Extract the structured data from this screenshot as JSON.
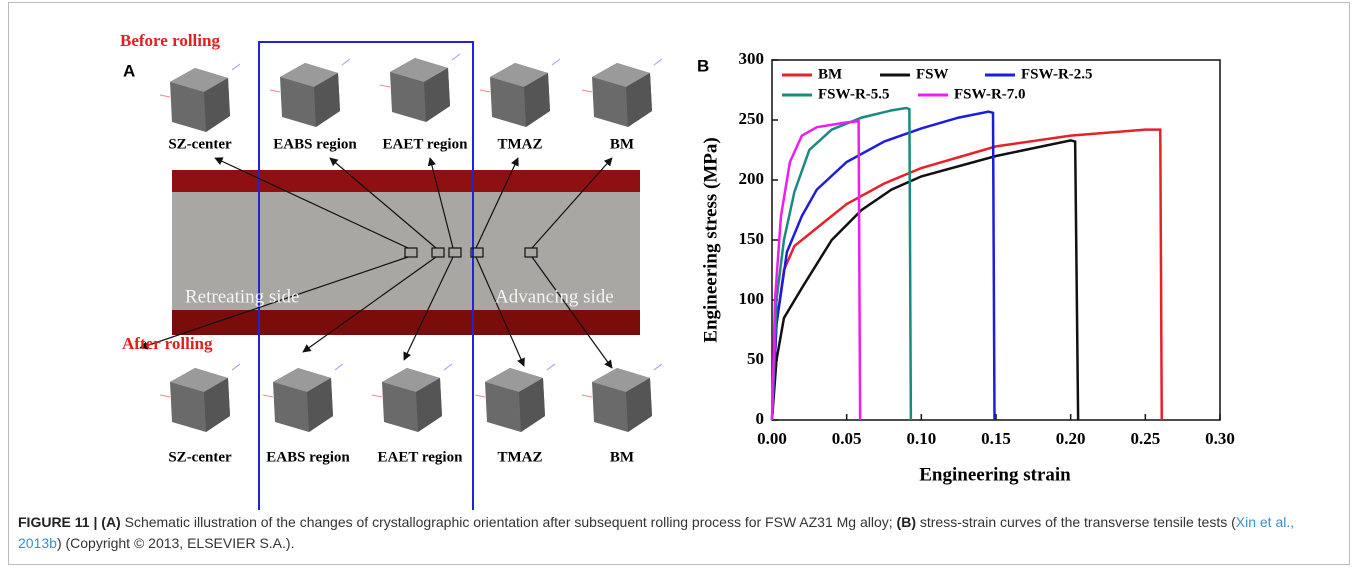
{
  "panel_a": {
    "letter": "A",
    "before": "Before rolling",
    "after": "After rolling",
    "top_labels": [
      "SZ-center",
      "EABS region",
      "EAET region",
      "TMAZ",
      "BM"
    ],
    "bottom_labels": [
      "SZ-center",
      "EABS region",
      "EAET region",
      "TMAZ",
      "BM"
    ],
    "retreating": "Retreating side",
    "advancing": "Advancing side"
  },
  "chart_data": {
    "type": "line",
    "letter": "B",
    "xlabel": "Engineering strain",
    "ylabel": "Engineering stress (MPa)",
    "xlim": [
      0,
      0.3
    ],
    "ylim": [
      0,
      300
    ],
    "xticks": [
      {
        "value": 0,
        "label": "0.00"
      },
      0.05,
      {
        "value": 0.1,
        "label": "0.10"
      },
      0.15,
      {
        "value": 0.2,
        "label": "0.20"
      },
      0.25,
      {
        "value": 0.3,
        "label": "0.30"
      }
    ],
    "yticks": [
      0,
      50,
      100,
      150,
      200,
      250,
      300
    ],
    "series": [
      {
        "name": "BM",
        "color": "#e8202a",
        "x": [
          0,
          0.003,
          0.008,
          0.015,
          0.03,
          0.05,
          0.075,
          0.1,
          0.15,
          0.2,
          0.25,
          0.26,
          0.261
        ],
        "values": [
          0,
          80,
          125,
          145,
          160,
          180,
          197,
          210,
          228,
          237,
          242,
          242,
          0
        ]
      },
      {
        "name": "FSW",
        "color": "#111111",
        "x": [
          0,
          0.003,
          0.008,
          0.02,
          0.04,
          0.06,
          0.08,
          0.1,
          0.15,
          0.2,
          0.203,
          0.205
        ],
        "values": [
          0,
          50,
          85,
          110,
          150,
          175,
          192,
          203,
          220,
          233,
          232,
          0
        ]
      },
      {
        "name": "FSW-R-2.5",
        "color": "#1c1ce0",
        "x": [
          0,
          0.003,
          0.01,
          0.02,
          0.03,
          0.05,
          0.075,
          0.1,
          0.125,
          0.145,
          0.148,
          0.149
        ],
        "values": [
          0,
          80,
          140,
          170,
          192,
          215,
          232,
          243,
          252,
          257,
          256,
          0
        ]
      },
      {
        "name": "FSW-R-5.5",
        "color": "#1a8a7e",
        "x": [
          0,
          0.003,
          0.008,
          0.015,
          0.025,
          0.04,
          0.06,
          0.08,
          0.09,
          0.092,
          0.093
        ],
        "values": [
          0,
          100,
          150,
          190,
          225,
          242,
          252,
          258,
          260,
          259,
          0
        ]
      },
      {
        "name": "FSW-R-7.0",
        "color": "#f01cf0",
        "x": [
          0,
          0.002,
          0.006,
          0.012,
          0.02,
          0.03,
          0.05,
          0.058,
          0.059
        ],
        "values": [
          0,
          100,
          170,
          215,
          237,
          244,
          248,
          249,
          0
        ]
      }
    ]
  },
  "caption": {
    "label": "FIGURE 11 |",
    "a": "(A)",
    "text_a": " Schematic illustration of the changes of crystallographic orientation after subsequent rolling process for FSW AZ31 Mg alloy; ",
    "b": "(B)",
    "text_b": " stress-strain curves of the transverse tensile tests (",
    "citation": "Xin et al., 2013b",
    "rest": ") (Copyright © 2013, ELSEVIER S.A.)."
  }
}
